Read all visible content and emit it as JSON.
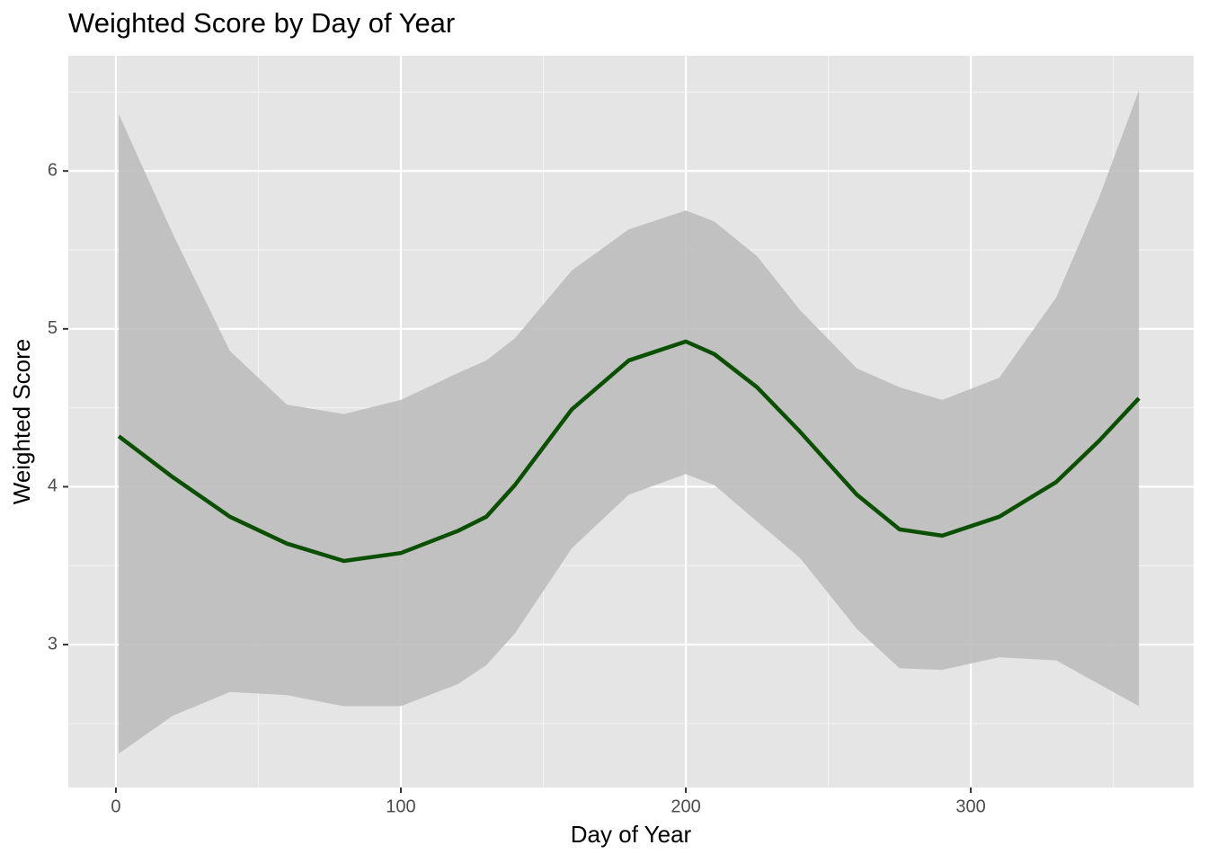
{
  "chart_data": {
    "type": "line",
    "title": "Weighted Score by Day of Year",
    "x_label": "Day of Year",
    "y_label": "Weighted Score",
    "x": [
      1,
      20,
      40,
      60,
      80,
      100,
      120,
      130,
      140,
      160,
      180,
      200,
      210,
      225,
      240,
      260,
      275,
      290,
      310,
      330,
      345,
      359
    ],
    "series": [
      {
        "color": "#0a5000",
        "band_color": "#bdbdbd",
        "values": [
          4.32,
          4.06,
          3.81,
          3.64,
          3.53,
          3.58,
          3.72,
          3.81,
          4.01,
          4.49,
          4.8,
          4.92,
          4.84,
          4.63,
          4.35,
          3.95,
          3.73,
          3.69,
          3.81,
          4.03,
          4.29,
          4.56
        ],
        "upper": [
          6.36,
          5.6,
          4.86,
          4.52,
          4.46,
          4.55,
          4.72,
          4.8,
          4.94,
          5.37,
          5.63,
          5.75,
          5.68,
          5.46,
          5.12,
          4.75,
          4.63,
          4.55,
          4.69,
          5.2,
          5.83,
          6.51
        ],
        "lower": [
          2.31,
          2.55,
          2.7,
          2.68,
          2.61,
          2.61,
          2.75,
          2.87,
          3.07,
          3.61,
          3.95,
          4.08,
          4.01,
          3.78,
          3.55,
          3.1,
          2.85,
          2.84,
          2.92,
          2.9,
          2.75,
          2.61
        ]
      }
    ],
    "xlim": [
      -16.7,
      378.2
    ],
    "xticks": [
      0,
      100,
      200,
      300
    ],
    "xminor": [
      50,
      150,
      250,
      350
    ],
    "ylim": [
      2.095,
      6.73
    ],
    "yticks": [
      3,
      4,
      5,
      6
    ],
    "yminor": [
      2.5,
      3.5,
      4.5,
      5.5,
      6.5
    ],
    "grid": true
  }
}
